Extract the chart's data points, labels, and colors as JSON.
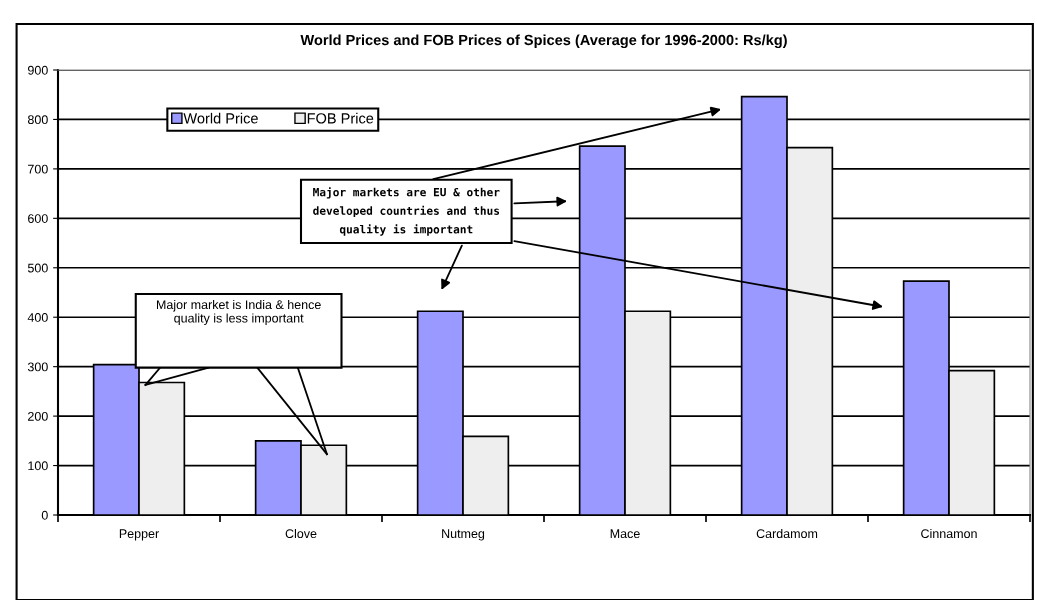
{
  "chart_data": {
    "type": "bar",
    "title": "World Prices and FOB Prices of Spices (Average for 1996-2000: Rs/kg)",
    "categories": [
      "Pepper",
      "Clove",
      "Nutmeg",
      "Mace",
      "Cardamom",
      "Cinnamon"
    ],
    "series": [
      {
        "name": "World Price",
        "color": "#9999ff",
        "values": [
          304,
          150,
          412,
          746,
          846,
          473
        ]
      },
      {
        "name": "FOB Price",
        "color": "#eeeeee",
        "values": [
          268,
          141,
          159,
          412,
          743,
          292
        ]
      }
    ],
    "ylim": [
      0,
      900
    ],
    "yticks": [
      0,
      100,
      200,
      300,
      400,
      500,
      600,
      700,
      800,
      900
    ],
    "grid": "y",
    "legend": "top left",
    "annotations": [
      "Major market is India & hence quality is less important",
      "Major markets are EU & other developed countries and thus quality is important"
    ]
  }
}
